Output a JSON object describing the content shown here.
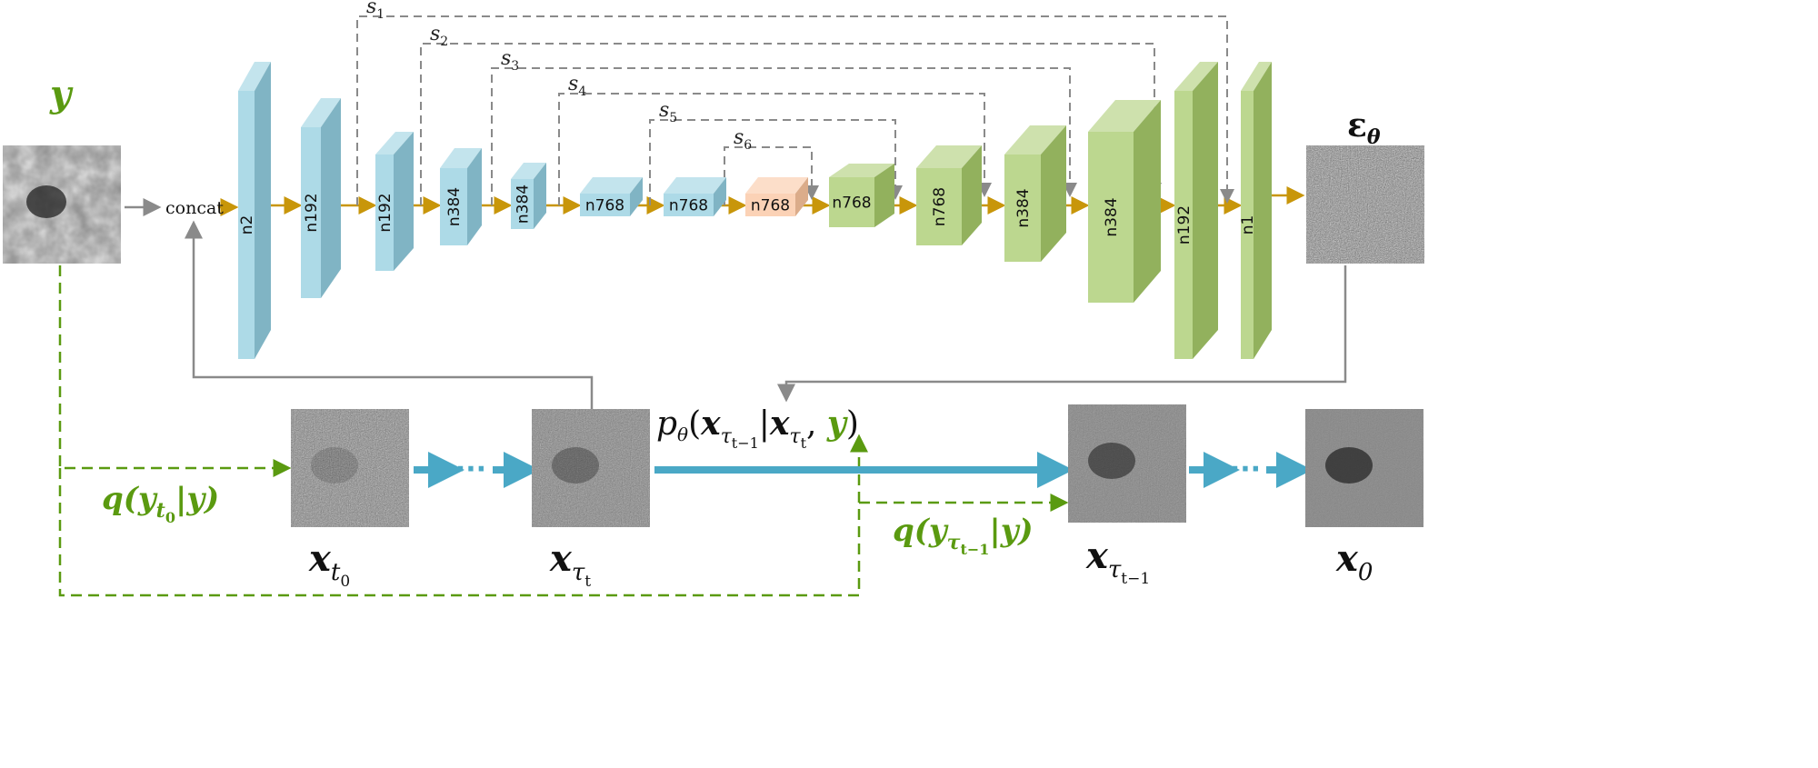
{
  "colors": {
    "encoder": "#92cddf",
    "bottleneck": "#f9c39d",
    "decoder": "#a6c96a",
    "flow": "#c8960a",
    "skip": "#8a8a8a",
    "condition": "#5a9a10",
    "diffusion": "#4aa8c6"
  },
  "input_label": "y",
  "output_label": "ε",
  "output_sub": "θ",
  "concat_label": "concat",
  "blocks": [
    {
      "label": "n2",
      "stage": "encoder"
    },
    {
      "label": "n192",
      "stage": "encoder"
    },
    {
      "label": "n192",
      "stage": "encoder"
    },
    {
      "label": "n384",
      "stage": "encoder"
    },
    {
      "label": "n384",
      "stage": "encoder"
    },
    {
      "label": "n768",
      "stage": "encoder"
    },
    {
      "label": "n768",
      "stage": "encoder"
    },
    {
      "label": "n768",
      "stage": "bottleneck"
    },
    {
      "label": "n768",
      "stage": "decoder"
    },
    {
      "label": "n768",
      "stage": "decoder"
    },
    {
      "label": "n384",
      "stage": "decoder"
    },
    {
      "label": "n384",
      "stage": "decoder"
    },
    {
      "label": "n192",
      "stage": "decoder"
    },
    {
      "label": "n1",
      "stage": "decoder"
    }
  ],
  "skips": [
    {
      "name": "s",
      "sub": "1"
    },
    {
      "name": "s",
      "sub": "2"
    },
    {
      "name": "s",
      "sub": "3"
    },
    {
      "name": "s",
      "sub": "4"
    },
    {
      "name": "s",
      "sub": "5"
    },
    {
      "name": "s",
      "sub": "6"
    }
  ],
  "reverse_label": {
    "p": "p",
    "theta": "θ",
    "x1": "x",
    "x1sub": "τ",
    "x1subsub": "t−1",
    "bar": "|",
    "x2": "x",
    "x2sub": "τ",
    "x2subsub": "t",
    "y": "y"
  },
  "forward_label_1": {
    "q": "q(",
    "y": "y",
    "sub": "t",
    "subsub": "0",
    "rest": "|y)"
  },
  "forward_label_2": {
    "q": "q(",
    "y": "y",
    "sub": "τ",
    "subsub": "t−1",
    "rest": "|y)"
  },
  "images": [
    {
      "label": "x",
      "sub": "t",
      "subsub": "0"
    },
    {
      "label": "x",
      "sub": "τ",
      "subsub": "t"
    },
    {
      "label": "x",
      "sub": "τ",
      "subsub": "t−1"
    },
    {
      "label": "x",
      "sub": "0",
      "subsub": ""
    }
  ],
  "ellipsis": "···"
}
